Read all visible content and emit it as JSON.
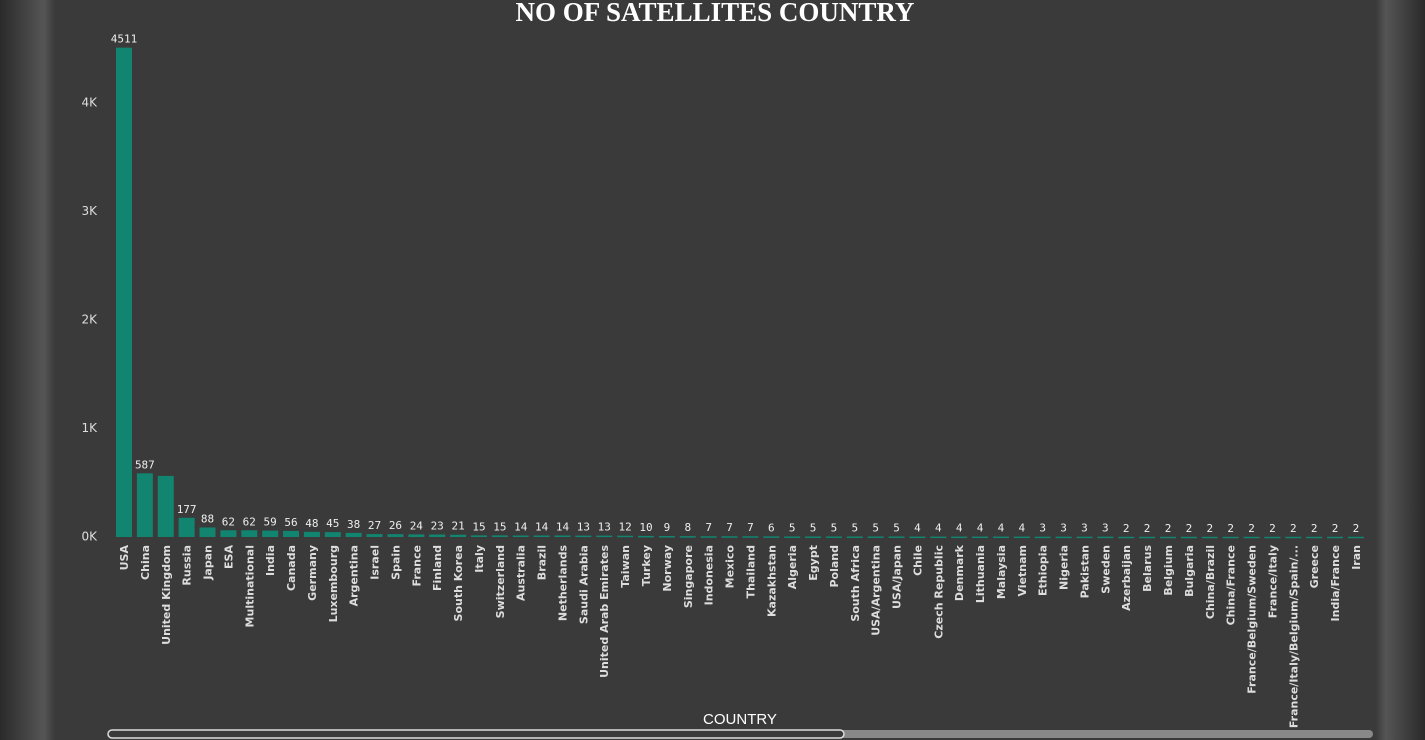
{
  "chart_data": {
    "type": "bar",
    "title": "NO OF SATELLITES COUNTRY",
    "x_label": "COUNTRY",
    "color": "#118570",
    "categories": [
      "USA",
      "China",
      "United Kingdom",
      "Russia",
      "Japan",
      "ESA",
      "Multinational",
      "India",
      "Canada",
      "Germany",
      "Luxembourg",
      "Argentina",
      "Israel",
      "Spain",
      "France",
      "Finland",
      "South Korea",
      "Italy",
      "Switzerland",
      "Australia",
      "Brazil",
      "Netherlands",
      "Saudi Arabia",
      "United Arab Emirates",
      "Taiwan",
      "Turkey",
      "Norway",
      "Singapore",
      "Indonesia",
      "Mexico",
      "Thailand",
      "Kazakhstan",
      "Algeria",
      "Egypt",
      "Poland",
      "South Africa",
      "USA/Argentina",
      "USA/Japan",
      "Chile",
      "Czech Republic",
      "Denmark",
      "Lithuania",
      "Malaysia",
      "Vietnam",
      "Ethiopia",
      "Nigeria",
      "Pakistan",
      "Sweden",
      "Azerbaijan",
      "Belarus",
      "Belgium",
      "Bulgaria",
      "China/Brazil",
      "China/France",
      "France/Belgium/Sweden",
      "France/Italy",
      "France/Italy/Belgium/Spain/...",
      "Greece",
      "India/France",
      "Iran"
    ],
    "values": [
      4511,
      587,
      563,
      177,
      88,
      62,
      62,
      59,
      56,
      48,
      45,
      38,
      27,
      26,
      24,
      23,
      21,
      15,
      15,
      14,
      14,
      14,
      13,
      13,
      12,
      10,
      9,
      8,
      7,
      7,
      7,
      6,
      5,
      5,
      5,
      5,
      5,
      5,
      4,
      4,
      4,
      4,
      4,
      4,
      3,
      3,
      3,
      3,
      2,
      2,
      2,
      2,
      2,
      2,
      2,
      2,
      2,
      2,
      2,
      2
    ],
    "value_labels": [
      "4511",
      "587",
      null,
      "177",
      "88",
      "62",
      "62",
      "59",
      "56",
      "48",
      "45",
      "38",
      "27",
      "26",
      "24",
      "23",
      "21",
      "15",
      "15",
      "14",
      "14",
      "14",
      "13",
      "13",
      "12",
      "10",
      "9",
      "8",
      "7",
      "7",
      "7",
      "6",
      "5",
      "5",
      "5",
      "5",
      "5",
      "5",
      "4",
      "4",
      "4",
      "4",
      "4",
      "4",
      "3",
      "3",
      "3",
      "3",
      "2",
      "2",
      "2",
      "2",
      "2",
      "2",
      "2",
      "2",
      "2",
      "2",
      "2",
      "2"
    ],
    "ylim": [
      0,
      4600
    ],
    "yticks": [
      {
        "value": 0,
        "label": "0K"
      },
      {
        "value": 1000,
        "label": "1K"
      },
      {
        "value": 2000,
        "label": "2K"
      },
      {
        "value": 3000,
        "label": "3K"
      },
      {
        "value": 4000,
        "label": "4K"
      }
    ],
    "grid": false
  }
}
